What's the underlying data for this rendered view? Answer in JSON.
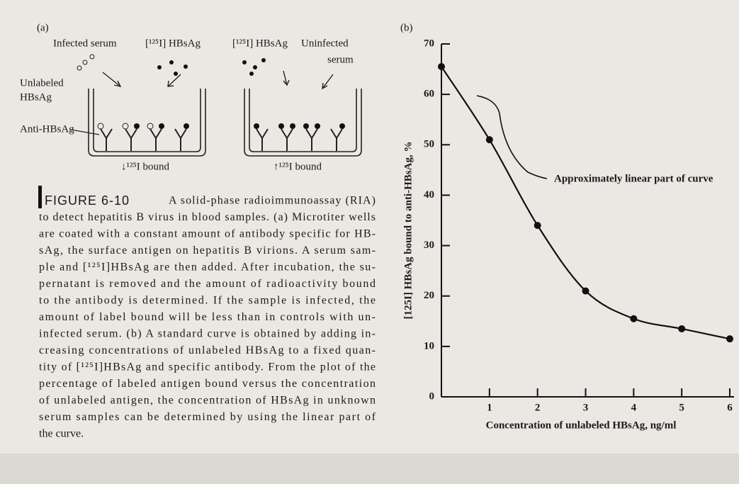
{
  "panel_a": {
    "label": "(a)",
    "infected_serum": "Infected serum",
    "labeled_antigen_1": "[¹²⁵I] HBsAg",
    "labeled_antigen_2": "[¹²⁵I] HBsAg",
    "uninfected_serum": [
      "Uninfected",
      "serum"
    ],
    "unlabeled": [
      "Unlabeled",
      "HBsAg"
    ],
    "antibody": "Anti-HBsAg",
    "result_infected": "↓¹²⁵I bound",
    "result_uninfected": "↑¹²⁵I bound"
  },
  "caption": {
    "label": "FIGURE 6-10",
    "lines": [
      "A solid-phase radioimmunoassay (RIA)",
      "to detect hepatitis B virus in blood samples. (a) Microtiter wells",
      "are coated with a constant amount of antibody specific for HB-",
      "sAg, the surface antigen on hepatitis B virions. A serum sam-",
      "ple and [¹²⁵I]HBsAg are then added. After incubation, the su-",
      "pernatant is removed and the amount of radioactivity bound",
      "to the antibody is determined. If the sample is infected, the",
      "amount of label bound will be less than in controls with un-",
      "infected serum. (b) A standard curve is obtained by adding in-",
      "creasing concentrations of unlabeled HBsAg to a fixed quan-",
      "tity of [¹²⁵I]HBsAg and specific antibody. From the plot of the",
      "percentage of labeled antigen bound versus the concentration",
      "of unlabeled antigen, the concentration of HBsAg in unknown",
      "serum samples can be determined by using the linear part of",
      "the curve."
    ]
  },
  "chart_data": {
    "type": "line",
    "panel_label": "(b)",
    "xlabel": "Concentration of unlabeled HBsAg, ng/ml",
    "ylabel": "[125I] HBsAg bound to anti-HBsAg, %",
    "annotation": "Approximately linear part of curve",
    "x": [
      0,
      1,
      2,
      3,
      4,
      5,
      6
    ],
    "series": [
      {
        "color": "#111111",
        "values": [
          65.5,
          51,
          34,
          21,
          15.5,
          13.5,
          11.5
        ]
      }
    ],
    "xlim": [
      0,
      6
    ],
    "ylim": [
      0,
      70
    ],
    "xticks": [
      1,
      2,
      3,
      4,
      5,
      6
    ],
    "yticks": [
      0,
      10,
      20,
      30,
      40,
      50,
      60,
      70
    ]
  }
}
